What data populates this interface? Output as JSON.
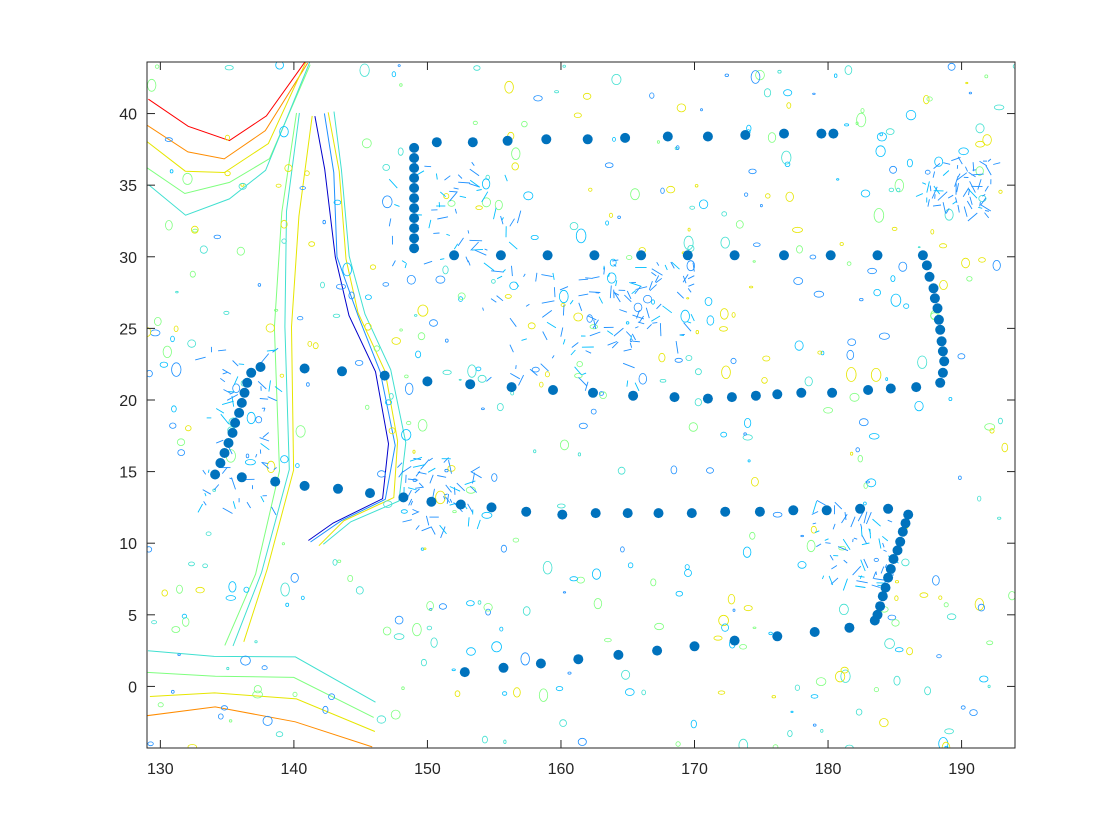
{
  "chart_data": {
    "type": "scatter",
    "title": "",
    "xlabel": "",
    "ylabel": "",
    "xlim": [
      129,
      194
    ],
    "ylim": [
      -4.3,
      43.6
    ],
    "x_ticks": [
      130,
      140,
      150,
      160,
      170,
      180,
      190
    ],
    "y_ticks": [
      0,
      5,
      10,
      15,
      20,
      25,
      30,
      35,
      40
    ],
    "x_tick_labels": [
      "130",
      "140",
      "150",
      "160",
      "170",
      "180",
      "190"
    ],
    "y_tick_labels": [
      "0",
      "5",
      "10",
      "15",
      "20",
      "25",
      "30",
      "35",
      "40"
    ],
    "grid": false,
    "box": true,
    "background": "bathymetric contour map (colored depth contours, jet colormap)",
    "marker_color": "#0072BD",
    "contour_colors": [
      "#0000CC",
      "#1E90FF",
      "#00BFFF",
      "#40E0D0",
      "#7FFF7F",
      "#E6E600",
      "#FF8C00",
      "#FF0000"
    ],
    "series": [
      {
        "points": [
          [
            134.1,
            14.8
          ],
          [
            134.5,
            15.6
          ],
          [
            134.8,
            16.3
          ],
          [
            135.1,
            17.0
          ],
          [
            135.4,
            17.7
          ],
          [
            135.6,
            18.4
          ],
          [
            135.9,
            19.1
          ],
          [
            136.1,
            19.8
          ],
          [
            136.3,
            20.5
          ],
          [
            136.5,
            21.2
          ],
          [
            136.8,
            21.9
          ],
          [
            137.5,
            22.3
          ],
          [
            136.1,
            14.6
          ],
          [
            138.6,
            14.3
          ],
          [
            140.8,
            14.0
          ],
          [
            140.8,
            22.2
          ],
          [
            143.6,
            22.0
          ],
          [
            146.8,
            21.7
          ],
          [
            143.3,
            13.8
          ],
          [
            145.7,
            13.5
          ],
          [
            148.2,
            13.2
          ],
          [
            150.3,
            12.9
          ],
          [
            152.5,
            12.7
          ],
          [
            154.8,
            12.5
          ],
          [
            157.4,
            12.2
          ],
          [
            160.1,
            12.0
          ],
          [
            162.6,
            12.1
          ],
          [
            165.0,
            12.1
          ],
          [
            167.3,
            12.1
          ],
          [
            169.8,
            12.1
          ],
          [
            172.3,
            12.2
          ],
          [
            174.9,
            12.2
          ],
          [
            177.4,
            12.3
          ],
          [
            179.9,
            12.3
          ],
          [
            182.4,
            12.4
          ],
          [
            184.5,
            12.4
          ],
          [
            186.0,
            12.0
          ],
          [
            185.8,
            11.4
          ],
          [
            185.6,
            10.8
          ],
          [
            185.4,
            10.1
          ],
          [
            185.2,
            9.5
          ],
          [
            184.9,
            8.9
          ],
          [
            184.7,
            8.2
          ],
          [
            184.5,
            7.6
          ],
          [
            184.3,
            6.9
          ],
          [
            184.1,
            6.3
          ],
          [
            183.9,
            5.6
          ],
          [
            183.7,
            5.0
          ],
          [
            183.5,
            4.6
          ],
          [
            181.6,
            4.1
          ],
          [
            179.0,
            3.8
          ],
          [
            176.2,
            3.5
          ],
          [
            173.0,
            3.2
          ],
          [
            170.0,
            2.8
          ],
          [
            167.2,
            2.5
          ],
          [
            164.3,
            2.2
          ],
          [
            161.3,
            1.9
          ],
          [
            158.5,
            1.6
          ],
          [
            155.7,
            1.3
          ],
          [
            152.8,
            1.0
          ],
          [
            149.0,
            37.6
          ],
          [
            149.0,
            36.9
          ],
          [
            149.0,
            36.2
          ],
          [
            149.0,
            35.5
          ],
          [
            149.0,
            34.8
          ],
          [
            149.0,
            34.1
          ],
          [
            149.0,
            33.4
          ],
          [
            149.0,
            32.7
          ],
          [
            149.0,
            32.0
          ],
          [
            149.0,
            31.3
          ],
          [
            149.0,
            30.6
          ],
          [
            150.7,
            38.0
          ],
          [
            153.4,
            38.0
          ],
          [
            156.0,
            38.1
          ],
          [
            158.9,
            38.2
          ],
          [
            162.0,
            38.2
          ],
          [
            164.8,
            38.3
          ],
          [
            168.0,
            38.4
          ],
          [
            171.0,
            38.4
          ],
          [
            173.8,
            38.5
          ],
          [
            176.7,
            38.6
          ],
          [
            179.5,
            38.6
          ],
          [
            180.4,
            38.6
          ],
          [
            152.0,
            30.1
          ],
          [
            155.5,
            30.1
          ],
          [
            159.0,
            30.1
          ],
          [
            162.5,
            30.1
          ],
          [
            166.0,
            30.1
          ],
          [
            169.5,
            30.1
          ],
          [
            173.0,
            30.1
          ],
          [
            176.7,
            30.1
          ],
          [
            180.2,
            30.1
          ],
          [
            183.7,
            30.1
          ],
          [
            187.1,
            30.1
          ],
          [
            187.4,
            29.4
          ],
          [
            187.6,
            28.6
          ],
          [
            187.9,
            27.8
          ],
          [
            188.0,
            27.1
          ],
          [
            188.2,
            26.4
          ],
          [
            188.3,
            25.6
          ],
          [
            188.4,
            24.9
          ],
          [
            188.5,
            24.1
          ],
          [
            188.6,
            23.4
          ],
          [
            188.7,
            22.7
          ],
          [
            188.6,
            21.9
          ],
          [
            188.4,
            21.2
          ],
          [
            186.6,
            20.9
          ],
          [
            184.7,
            20.8
          ],
          [
            183.0,
            20.7
          ],
          [
            180.3,
            20.5
          ],
          [
            178.0,
            20.5
          ],
          [
            176.2,
            20.4
          ],
          [
            174.6,
            20.3
          ],
          [
            172.8,
            20.2
          ],
          [
            171.0,
            20.1
          ],
          [
            168.5,
            20.2
          ],
          [
            165.4,
            20.3
          ],
          [
            162.4,
            20.5
          ],
          [
            159.4,
            20.7
          ],
          [
            156.3,
            20.9
          ],
          [
            153.2,
            21.1
          ],
          [
            150.0,
            21.3
          ]
        ]
      }
    ]
  }
}
